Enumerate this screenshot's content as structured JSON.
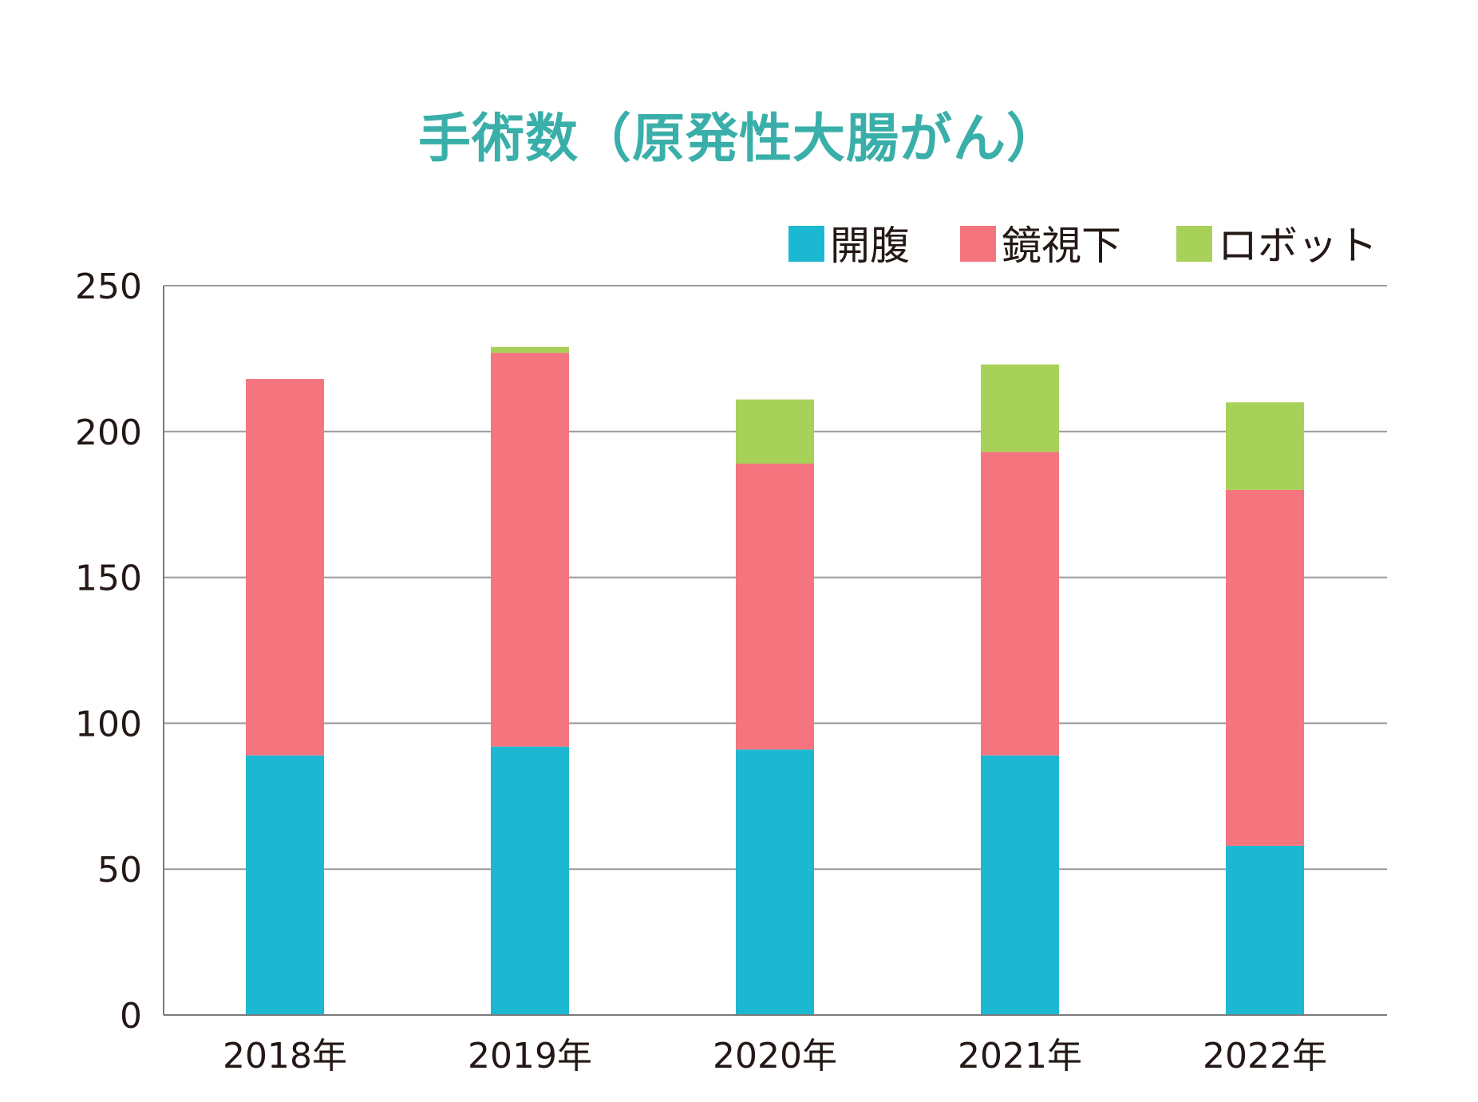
{
  "chart_data": {
    "type": "bar",
    "stacked": true,
    "title": "手術数（原発性大腸がん）",
    "xlabel": "",
    "ylabel": "",
    "categories": [
      "2018年",
      "2019年",
      "2020年",
      "2021年",
      "2022年"
    ],
    "series": [
      {
        "name": "開腹",
        "color": "#1cb8d2",
        "values": [
          89,
          92,
          91,
          89,
          58
        ]
      },
      {
        "name": "鏡視下",
        "color": "#f5757e",
        "values": [
          129,
          135,
          98,
          104,
          122
        ]
      },
      {
        "name": "ロボット",
        "color": "#a8d15a",
        "values": [
          0,
          2,
          22,
          30,
          30
        ]
      }
    ],
    "ylim": [
      0,
      250
    ],
    "yticks": [
      "0",
      "50",
      "100",
      "150",
      "200",
      "250"
    ],
    "grid": true,
    "legend_position": "top-right"
  }
}
